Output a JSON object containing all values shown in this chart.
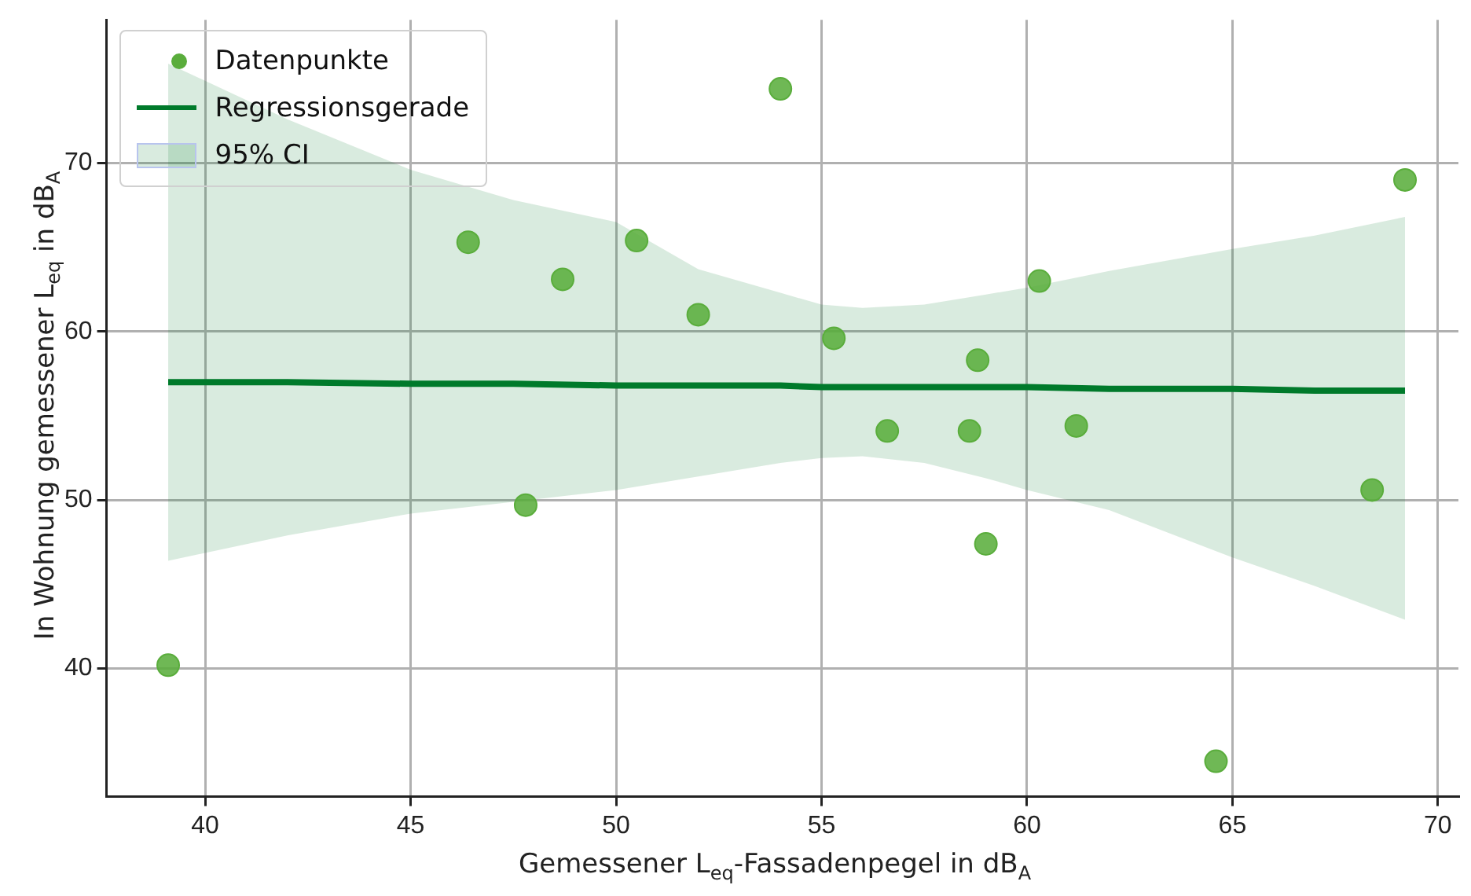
{
  "chart_data": {
    "type": "scatter",
    "xlabel": "Gemessener L$_{eq}$-Fassadenpegel in dB$_{A}$",
    "ylabel": "In Wohnung gemessener L$_{eq}$ in dB$_{A}$",
    "xlim": [
      37.6,
      70.5
    ],
    "xticks": [
      40,
      45,
      50,
      55,
      60,
      65,
      70
    ],
    "ylim": [
      32.4,
      78.5
    ],
    "yticks": [
      40,
      50,
      60,
      70
    ],
    "grid": true,
    "legend": "top left",
    "annotations": [
      "95% CI"
    ],
    "series": [
      {
        "name": "Datenpunkte",
        "marker": "circle",
        "color": "#5aad3c",
        "x": [
          39.1,
          46.4,
          47.8,
          48.7,
          50.5,
          52.0,
          54.0,
          55.3,
          56.6,
          58.6,
          58.8,
          59.0,
          60.3,
          61.2,
          64.6,
          68.4,
          69.2
        ],
        "values": [
          40.2,
          65.3,
          49.7,
          63.1,
          65.4,
          61.0,
          74.4,
          59.6,
          54.1,
          54.1,
          58.3,
          47.4,
          63.0,
          54.4,
          34.5,
          50.6,
          69.0
        ]
      },
      {
        "name": "Regressionsgerade",
        "type": "line",
        "color": "#007a2b",
        "x": [
          39.1,
          42,
          45,
          47.5,
          50,
          52,
          54,
          55,
          56,
          57.5,
          59,
          60,
          62,
          65,
          67,
          69.2
        ],
        "values": [
          57.0,
          57.0,
          56.9,
          56.9,
          56.8,
          56.8,
          56.8,
          56.7,
          56.7,
          56.7,
          56.7,
          56.7,
          56.6,
          56.6,
          56.5,
          56.5
        ],
        "lower": [
          46.4,
          47.9,
          49.2,
          49.9,
          50.6,
          51.4,
          52.2,
          52.5,
          52.6,
          52.2,
          51.3,
          50.6,
          49.4,
          46.6,
          44.9,
          42.9
        ],
        "upper": [
          75.9,
          72.6,
          69.6,
          67.8,
          66.5,
          63.7,
          62.3,
          61.6,
          61.4,
          61.6,
          62.2,
          62.6,
          63.6,
          64.9,
          65.7,
          66.8
        ]
      }
    ]
  }
}
